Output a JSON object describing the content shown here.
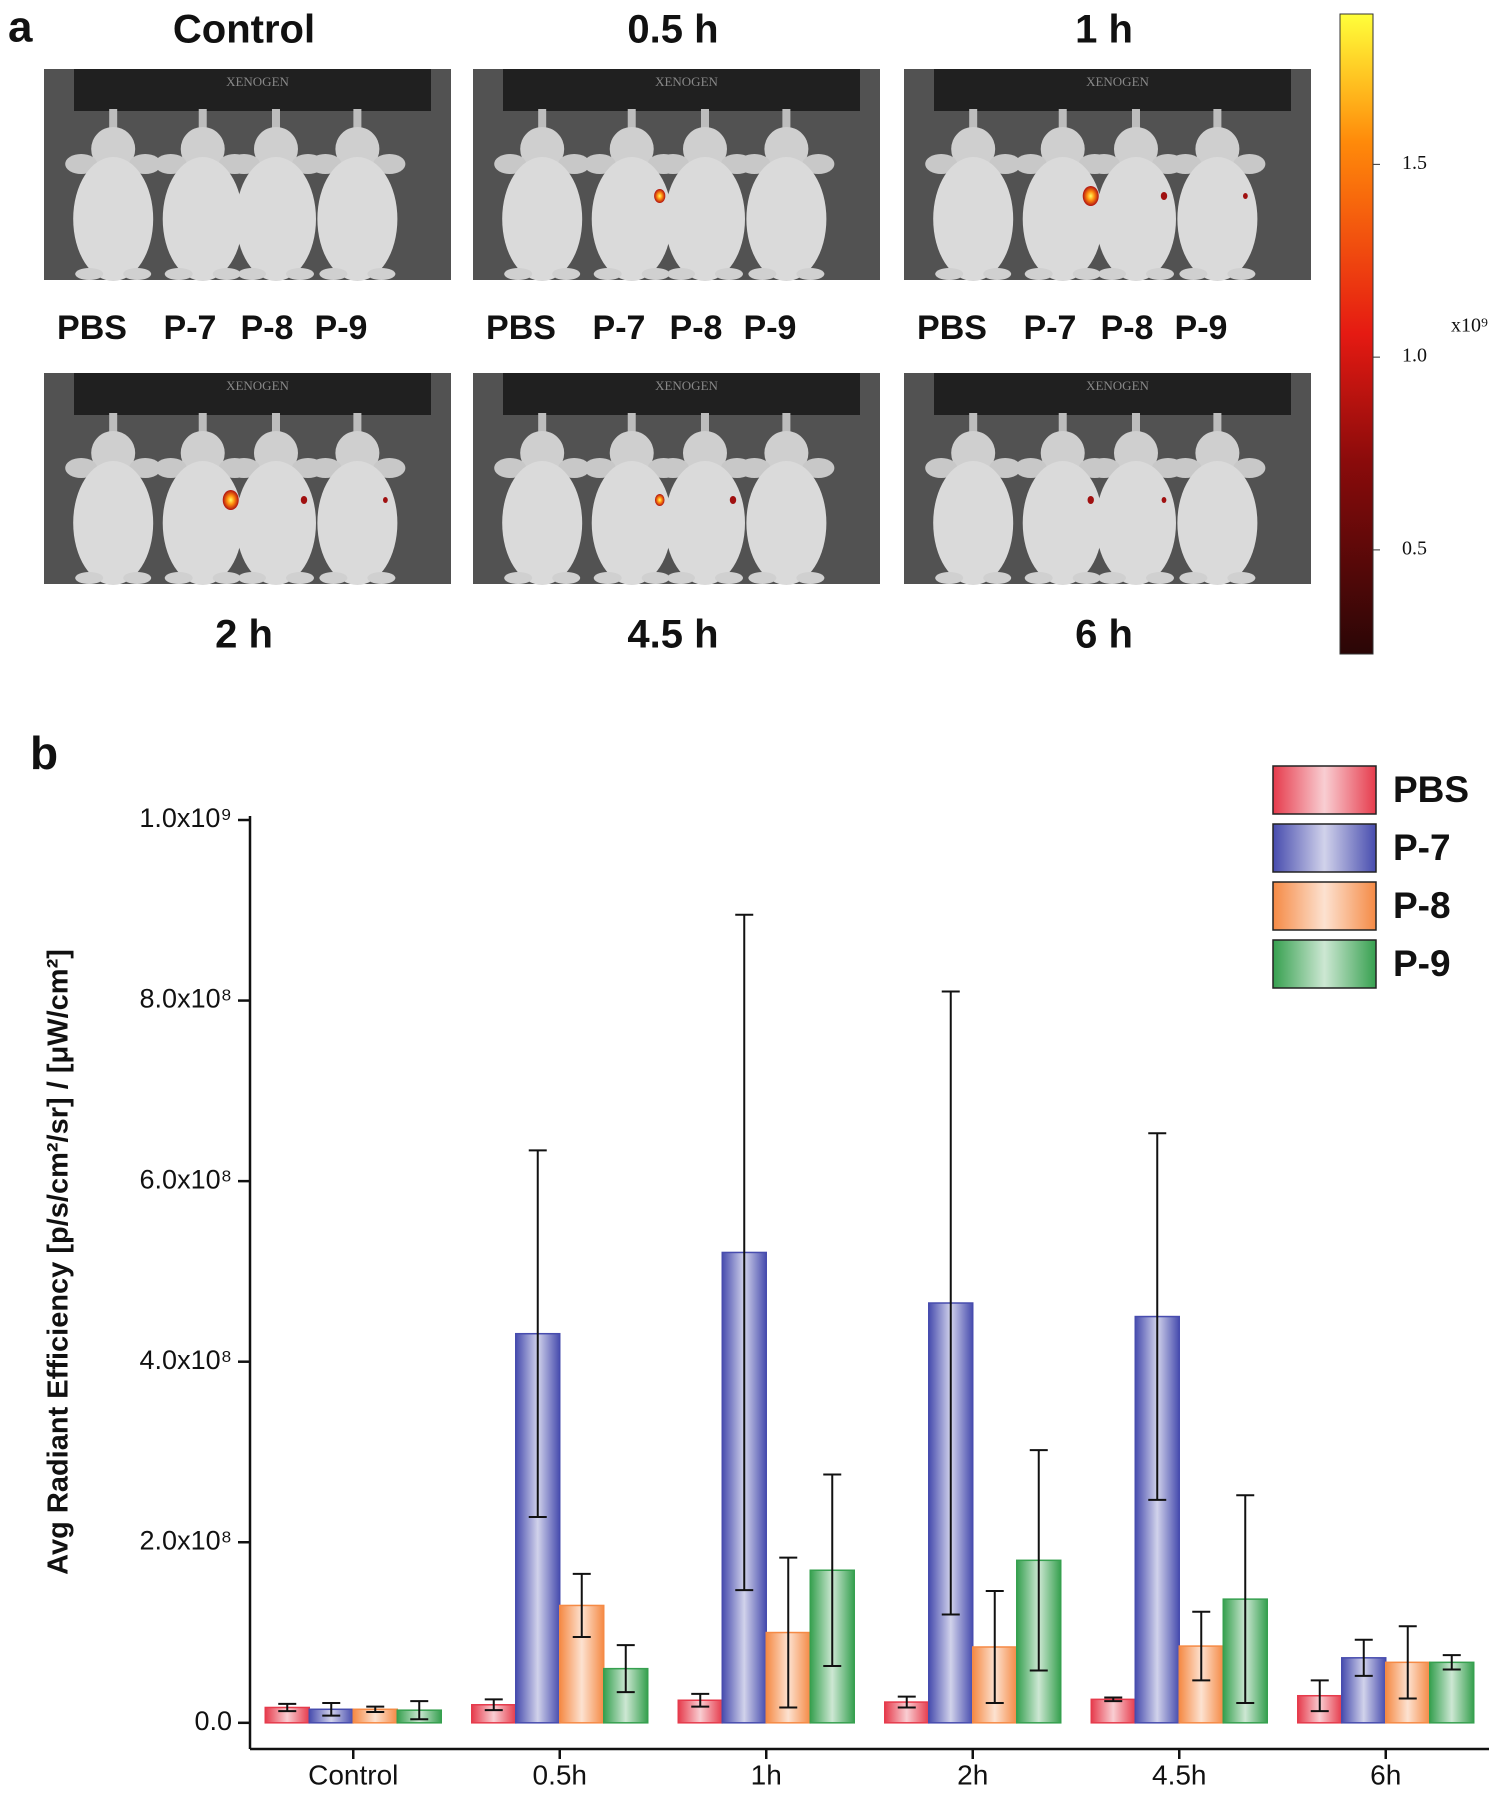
{
  "panel_a": {
    "label": "a",
    "image_titles": [
      "Control",
      "0.5 h",
      "1 h",
      "2 h",
      "4.5 h",
      "6 h"
    ],
    "mouse_labels": [
      "PBS",
      "P-7",
      "P-8",
      "P-9"
    ],
    "instrument_label": "XENOGEN",
    "colorbar": {
      "clim": [
        0.23,
        1.89
      ],
      "ticks": [
        0.5,
        {
          "value": 1,
          "label": "1.0"
        },
        1.5
      ],
      "multiplier": "x10⁹"
    }
  },
  "chart_data": {
    "type": "bar",
    "panel_label": "b",
    "y_label": "Avg Radiant Efficiency [p/s/cm²/sr] / [μW/cm²]",
    "categories": [
      "Control",
      "0.5h",
      "1h",
      "2h",
      "4.5h",
      "6h"
    ],
    "series": [
      {
        "name": "PBS",
        "color": "#e63b4c",
        "values": [
          17000000,
          20000000,
          25000000,
          23000000,
          26000000,
          30000000
        ],
        "errors": [
          4000000,
          6000000,
          7000000,
          6000000,
          2000000,
          17000000
        ]
      },
      {
        "name": "P-7",
        "color": "#474cae",
        "values": [
          15000000,
          431000000,
          521000000,
          465000000,
          450000000,
          72000000
        ],
        "errors": [
          7000000,
          203000000,
          374000000,
          345000000,
          203000000,
          20000000
        ]
      },
      {
        "name": "P-8",
        "color": "#f58a45",
        "values": [
          15000000,
          130000000,
          100000000,
          84000000,
          85000000,
          67000000
        ],
        "errors": [
          3000000,
          35000000,
          83000000,
          62000000,
          38000000,
          40000000
        ]
      },
      {
        "name": "P-9",
        "color": "#36a04f",
        "values": [
          14000000,
          60000000,
          169000000,
          180000000,
          137000000,
          67000000
        ],
        "errors": [
          10000000,
          26000000,
          106000000,
          122000000,
          115000000,
          8000000
        ]
      }
    ],
    "ylim": [
      -29000000,
      1000000000
    ],
    "yticks": [
      {
        "value": 0,
        "label": "0.0"
      },
      {
        "value": 200000000,
        "label": "2.0x10⁸"
      },
      {
        "value": 400000000,
        "label": "4.0x10⁸"
      },
      {
        "value": 600000000,
        "label": "6.0x10⁸"
      },
      {
        "value": 800000000,
        "label": "8.0x10⁸"
      },
      {
        "value": 1000000000,
        "label": "1.0x10⁹"
      }
    ],
    "legend": "upper right"
  }
}
